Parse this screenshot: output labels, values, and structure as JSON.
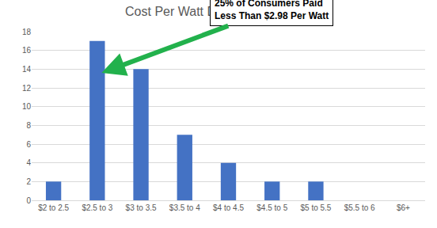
{
  "chart_data": {
    "type": "bar",
    "title": "Cost Per Watt Distribution: Ithaca",
    "categories": [
      "$2 to 2.5",
      "$2.5 to 3",
      "$3 to 3.5",
      "$3.5 to 4",
      "$4 to 4.5",
      "$4.5 to 5",
      "$5 to 5.5",
      "$5.5 to 6",
      "$6+"
    ],
    "values": [
      2,
      17,
      14,
      7,
      4,
      2,
      2,
      0,
      0
    ],
    "color": "#4472c4",
    "ylim": [
      0,
      18
    ],
    "yticks": [
      0,
      2,
      4,
      6,
      8,
      10,
      12,
      14,
      16,
      18
    ],
    "grid": true,
    "annotation": [
      "25% of Consumers Paid",
      "Less Than $2.98 Per Watt"
    ]
  }
}
